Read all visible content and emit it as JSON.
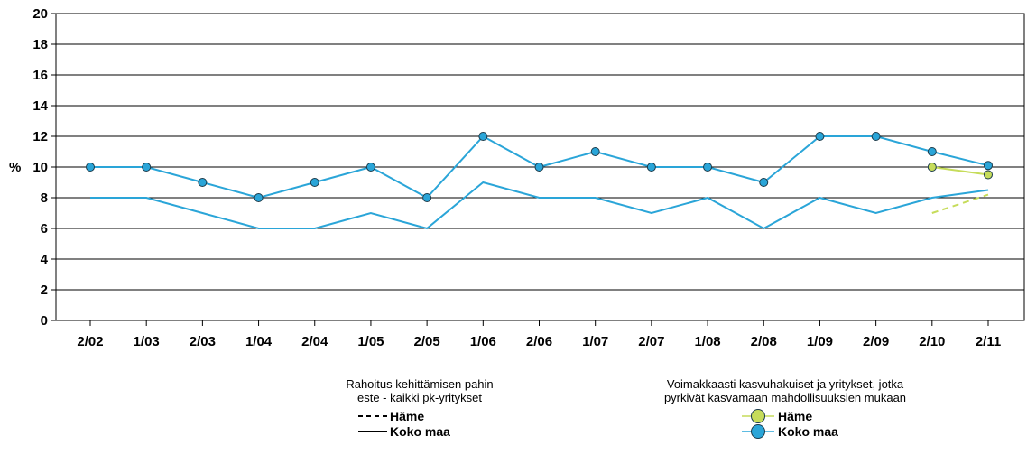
{
  "chart_data": {
    "type": "line",
    "ylabel": "%",
    "ylim": [
      0,
      20
    ],
    "yticks": [
      0,
      2,
      4,
      6,
      8,
      10,
      12,
      14,
      16,
      18,
      20
    ],
    "grid": true,
    "categories": [
      "2/02",
      "1/03",
      "2/03",
      "1/04",
      "2/04",
      "1/05",
      "2/05",
      "1/06",
      "2/06",
      "1/07",
      "2/07",
      "1/08",
      "2/08",
      "1/09",
      "2/09",
      "2/10",
      "2/11"
    ],
    "series": [
      {
        "group": "Rahoitus kehittämisen pahin este - kaikki pk-yritykset",
        "name": "Koko maa",
        "style": "solid",
        "color": "#2aa5d8",
        "values": [
          8,
          8,
          7,
          6,
          6,
          7,
          6,
          9,
          8,
          8,
          7,
          8,
          6,
          8,
          7,
          8,
          8.5
        ]
      },
      {
        "group": "Rahoitus kehittämisen pahin este - kaikki pk-yritykset",
        "name": "Häme",
        "style": "dashed",
        "color": "#c6dc5a",
        "values": [
          null,
          null,
          null,
          null,
          null,
          null,
          null,
          null,
          null,
          null,
          null,
          null,
          null,
          null,
          null,
          7,
          8.2
        ]
      },
      {
        "group": "Voimakkaasti kasvuhakuiset ja yritykset, jotka pyrkivät kasvamaan mahdollisuuksien mukaan",
        "name": "Koko maa",
        "style": "markers",
        "color": "#2aa5d8",
        "values": [
          10,
          10,
          9,
          8,
          9,
          10,
          8,
          12,
          10,
          11,
          10,
          10,
          9,
          12,
          12,
          11,
          10.1
        ]
      },
      {
        "group": "Voimakkaasti kasvuhakuiset ja yritykset, jotka pyrkivät kasvamaan mahdollisuuksien mukaan",
        "name": "Häme",
        "style": "markers",
        "color": "#c6dc5a",
        "values": [
          null,
          null,
          null,
          null,
          null,
          null,
          null,
          null,
          null,
          null,
          null,
          null,
          null,
          null,
          null,
          10,
          9.5
        ]
      }
    ],
    "legend": {
      "left": {
        "title_line1": "Rahoitus kehittämisen pahin",
        "title_line2": "este - kaikki pk-yritykset",
        "item1": "Häme",
        "item2": "Koko maa"
      },
      "right": {
        "title_line1": "Voimakkaasti kasvuhakuiset ja yritykset, jotka",
        "title_line2": "pyrkivät kasvamaan mahdollisuuksien mukaan",
        "item1": "Häme",
        "item2": "Koko maa"
      }
    },
    "colors": {
      "koko_maa": "#2aa5d8",
      "hame": "#c6dc5a",
      "marker_stroke": "#1a3a4a"
    }
  }
}
